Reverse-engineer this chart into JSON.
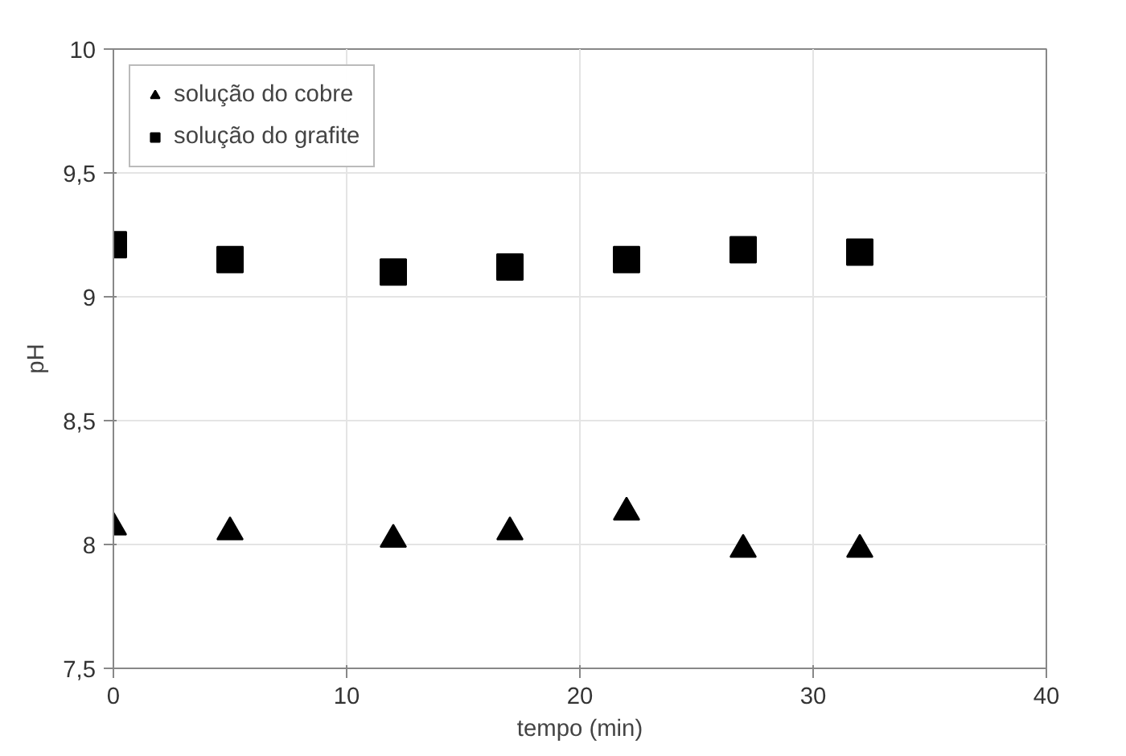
{
  "chart_data": {
    "type": "scatter",
    "xlabel": "tempo (min)",
    "ylabel": "pH",
    "x": [
      0,
      5,
      12,
      17,
      22,
      27,
      32
    ],
    "series": [
      {
        "name": "solução do cobre",
        "color": "#000000",
        "marker": "triangle",
        "values": [
          8.07,
          8.05,
          8.02,
          8.05,
          8.13,
          7.98,
          7.98
        ]
      },
      {
        "name": "solução do grafite",
        "color": "#000000",
        "marker": "square",
        "values": [
          9.21,
          9.15,
          9.1,
          9.12,
          9.15,
          9.19,
          9.18
        ]
      }
    ],
    "xlim": [
      0,
      40
    ],
    "xticks": [
      0,
      10,
      20,
      30,
      40
    ],
    "ylim": [
      7.5,
      10
    ],
    "yticks": [
      {
        "value": 7.5,
        "label": "7,5"
      },
      8,
      {
        "value": 8.5,
        "label": "8,5"
      },
      9,
      {
        "value": 9.5,
        "label": "9,5"
      },
      10
    ],
    "grid": true,
    "legend": "top left"
  }
}
